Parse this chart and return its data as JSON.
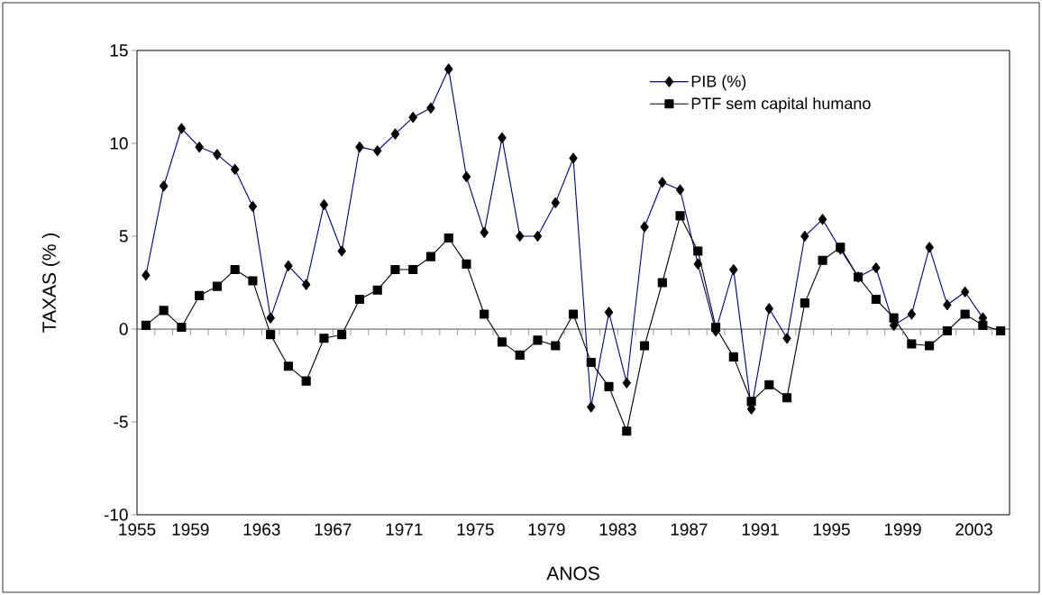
{
  "chart_data": {
    "type": "line",
    "xlabel": "ANOS",
    "ylabel": "TAXAS (% )",
    "x": [
      1956,
      1957,
      1958,
      1959,
      1960,
      1961,
      1962,
      1963,
      1964,
      1965,
      1966,
      1967,
      1968,
      1969,
      1970,
      1971,
      1972,
      1973,
      1974,
      1975,
      1976,
      1977,
      1978,
      1979,
      1980,
      1981,
      1982,
      1983,
      1984,
      1985,
      1986,
      1987,
      1988,
      1989,
      1990,
      1991,
      1992,
      1993,
      1994,
      1995,
      1996,
      1997,
      1998,
      1999,
      2000,
      2001,
      2002,
      2003,
      2004
    ],
    "series": [
      {
        "name": "PIB (%)",
        "color": "#000080",
        "marker": "diamond",
        "values": [
          2.9,
          7.7,
          10.8,
          9.8,
          9.4,
          8.6,
          6.6,
          0.6,
          3.4,
          2.4,
          6.7,
          4.2,
          9.8,
          9.6,
          10.5,
          11.4,
          11.9,
          14.0,
          8.2,
          5.2,
          10.3,
          5.0,
          5.0,
          6.8,
          9.2,
          -4.2,
          0.9,
          -2.9,
          5.5,
          7.9,
          7.5,
          3.5,
          -0.1,
          3.2,
          -4.3,
          1.1,
          -0.5,
          5.0,
          5.9,
          4.3,
          2.8,
          3.3,
          0.2,
          0.8,
          4.4,
          1.3,
          2.0,
          0.6,
          null
        ]
      },
      {
        "name": "PTF sem capital humano",
        "color": "#000000",
        "marker": "square",
        "values": [
          0.2,
          1.0,
          0.1,
          1.8,
          2.3,
          3.2,
          2.6,
          -0.3,
          -2.0,
          -2.8,
          -0.5,
          -0.3,
          1.6,
          2.1,
          3.2,
          3.2,
          3.9,
          4.9,
          3.5,
          0.8,
          -0.7,
          -1.4,
          -0.6,
          -0.9,
          0.8,
          -1.8,
          -3.1,
          -5.5,
          -0.9,
          2.5,
          6.1,
          4.2,
          0.1,
          -1.5,
          -3.9,
          -3.0,
          -3.7,
          1.4,
          3.7,
          4.4,
          2.8,
          1.6,
          0.6,
          -0.8,
          -0.9,
          -0.1,
          0.8,
          0.2,
          -0.1
        ]
      }
    ],
    "xlim": [
      1955.5,
      2004.5
    ],
    "xticks": [
      {
        "value": 1955.5,
        "label": "1955"
      },
      {
        "value": 1956.5,
        "label": null
      },
      {
        "value": 1957.5,
        "label": null
      },
      {
        "value": 1958.5,
        "label": "1959"
      },
      {
        "value": 1959.5,
        "label": null
      },
      {
        "value": 1960.5,
        "label": null
      },
      {
        "value": 1961.5,
        "label": null
      },
      {
        "value": 1962.5,
        "label": "1963"
      },
      {
        "value": 1963.5,
        "label": null
      },
      {
        "value": 1964.5,
        "label": null
      },
      {
        "value": 1965.5,
        "label": null
      },
      {
        "value": 1966.5,
        "label": "1967"
      },
      {
        "value": 1967.5,
        "label": null
      },
      {
        "value": 1968.5,
        "label": null
      },
      {
        "value": 1969.5,
        "label": null
      },
      {
        "value": 1970.5,
        "label": "1971"
      },
      {
        "value": 1971.5,
        "label": null
      },
      {
        "value": 1972.5,
        "label": null
      },
      {
        "value": 1973.5,
        "label": null
      },
      {
        "value": 1974.5,
        "label": "1975"
      },
      {
        "value": 1975.5,
        "label": null
      },
      {
        "value": 1976.5,
        "label": null
      },
      {
        "value": 1977.5,
        "label": null
      },
      {
        "value": 1978.5,
        "label": "1979"
      },
      {
        "value": 1979.5,
        "label": null
      },
      {
        "value": 1980.5,
        "label": null
      },
      {
        "value": 1981.5,
        "label": null
      },
      {
        "value": 1982.5,
        "label": "1983"
      },
      {
        "value": 1983.5,
        "label": null
      },
      {
        "value": 1984.5,
        "label": null
      },
      {
        "value": 1985.5,
        "label": null
      },
      {
        "value": 1986.5,
        "label": "1987"
      },
      {
        "value": 1987.5,
        "label": null
      },
      {
        "value": 1988.5,
        "label": null
      },
      {
        "value": 1989.5,
        "label": null
      },
      {
        "value": 1990.5,
        "label": "1991"
      },
      {
        "value": 1991.5,
        "label": null
      },
      {
        "value": 1992.5,
        "label": null
      },
      {
        "value": 1993.5,
        "label": null
      },
      {
        "value": 1994.5,
        "label": "1995"
      },
      {
        "value": 1995.5,
        "label": null
      },
      {
        "value": 1996.5,
        "label": null
      },
      {
        "value": 1997.5,
        "label": null
      },
      {
        "value": 1998.5,
        "label": "1999"
      },
      {
        "value": 1999.5,
        "label": null
      },
      {
        "value": 2000.5,
        "label": null
      },
      {
        "value": 2001.5,
        "label": null
      },
      {
        "value": 2002.5,
        "label": "2003"
      },
      {
        "value": 2003.5,
        "label": null
      },
      {
        "value": 2004.5,
        "label": null
      }
    ],
    "ylim": [
      -10,
      15
    ],
    "yticks": [
      -10,
      -5,
      0,
      5,
      10,
      15
    ],
    "ref_lines": [
      {
        "axis": "y",
        "value": 0,
        "color": "#000000"
      }
    ],
    "grid": false,
    "legend": "top right",
    "line_style": "solid"
  }
}
